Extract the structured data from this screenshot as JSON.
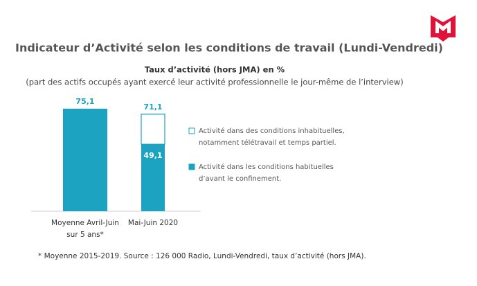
{
  "chart_data": {
    "type": "stacked-bar",
    "title": "Indicateur d’Activité selon les conditions de travail (Lundi-Vendredi)",
    "subtitle": "Taux d’activité (hors JMA) en %",
    "subtitle2": "(part des actifs occupés ayant exercé leur activité professionnelle le jour-même de l’interview)",
    "categories": [
      "Moyenne Avril-Juin\nsur 5 ans*",
      "Mai-Juin 2020"
    ],
    "series": [
      {
        "name": "Activité dans les conditions habituelles\nd’avant le confinement.",
        "color": "#1ba3c1",
        "values": [
          75.1,
          49.1
        ],
        "value_labels": [
          null,
          "49,1"
        ]
      },
      {
        "name": "Activité dans des conditions inhabituelles,\nnotamment télétravail et temps partiel.",
        "color": "#ffffff",
        "values": [
          0,
          22.0
        ]
      }
    ],
    "totals": {
      "values": [
        75.1,
        71.1
      ],
      "labels": [
        "75,1",
        "71,1"
      ]
    },
    "footnote": "* Moyenne 2015-2019.  Source : 126 000 Radio, Lundi-Vendredi, taux d’activité (hors JMA)."
  }
}
